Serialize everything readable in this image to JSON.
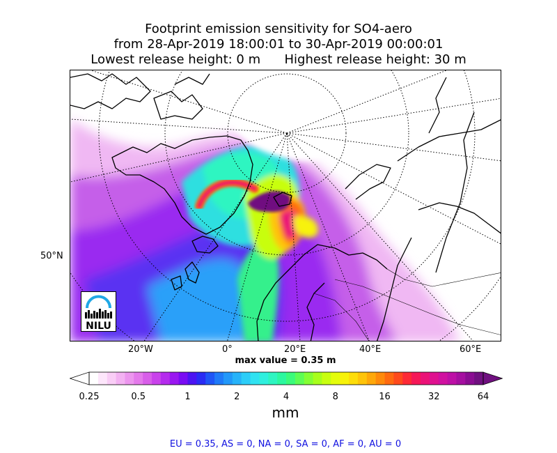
{
  "title": {
    "line1": "Footprint emission sensitivity for SO4-aero",
    "line2": "from 28-Apr-2019 18:00:01 to 30-Apr-2019 00:00:01",
    "line3_left": "Lowest release height: 0 m",
    "line3_right": "Highest release height: 30 m"
  },
  "map": {
    "projection": "polar stereographic (north)",
    "lat_labels": [
      "50°N"
    ],
    "lon_labels": [
      "20°W",
      "0°",
      "20°E",
      "40°E",
      "60°E"
    ]
  },
  "max_value_text": "max value = 0.35 m",
  "colorbar": {
    "ticks": [
      "0.25",
      "0.5",
      "1",
      "2",
      "4",
      "8",
      "16",
      "32",
      "64"
    ],
    "units": "mm",
    "scale": "log",
    "colors": [
      "#ffffff",
      "#fde6fb",
      "#f9cdf6",
      "#f3b2f2",
      "#ec96ee",
      "#e47aeb",
      "#d85ee9",
      "#c942eb",
      "#b52ced",
      "#9a17f0",
      "#7a0cf3",
      "#4c14f2",
      "#2a2cf4",
      "#1f55f6",
      "#1f7af8",
      "#2298f9",
      "#27b3f9",
      "#2ccdf8",
      "#31e2f1",
      "#30efde",
      "#2ef5c1",
      "#2cf89f",
      "#3bfb7b",
      "#5dfd55",
      "#84fe34",
      "#a8fe1c",
      "#c8fe10",
      "#e4fd0c",
      "#f7f20a",
      "#fddd0a",
      "#fec40a",
      "#fea80a",
      "#fe8a0b",
      "#fe6a10",
      "#fe4a1c",
      "#fd2a36",
      "#f51857",
      "#eb1277",
      "#df118f",
      "#d011a0",
      "#bd10a6",
      "#a50fa0",
      "#8a0d92",
      "#701080"
    ]
  },
  "region_totals": "EU = 0.35,  AS = 0,  NA = 0,  SA = 0,  AF = 0,  AU = 0",
  "logo_text": "NILU"
}
